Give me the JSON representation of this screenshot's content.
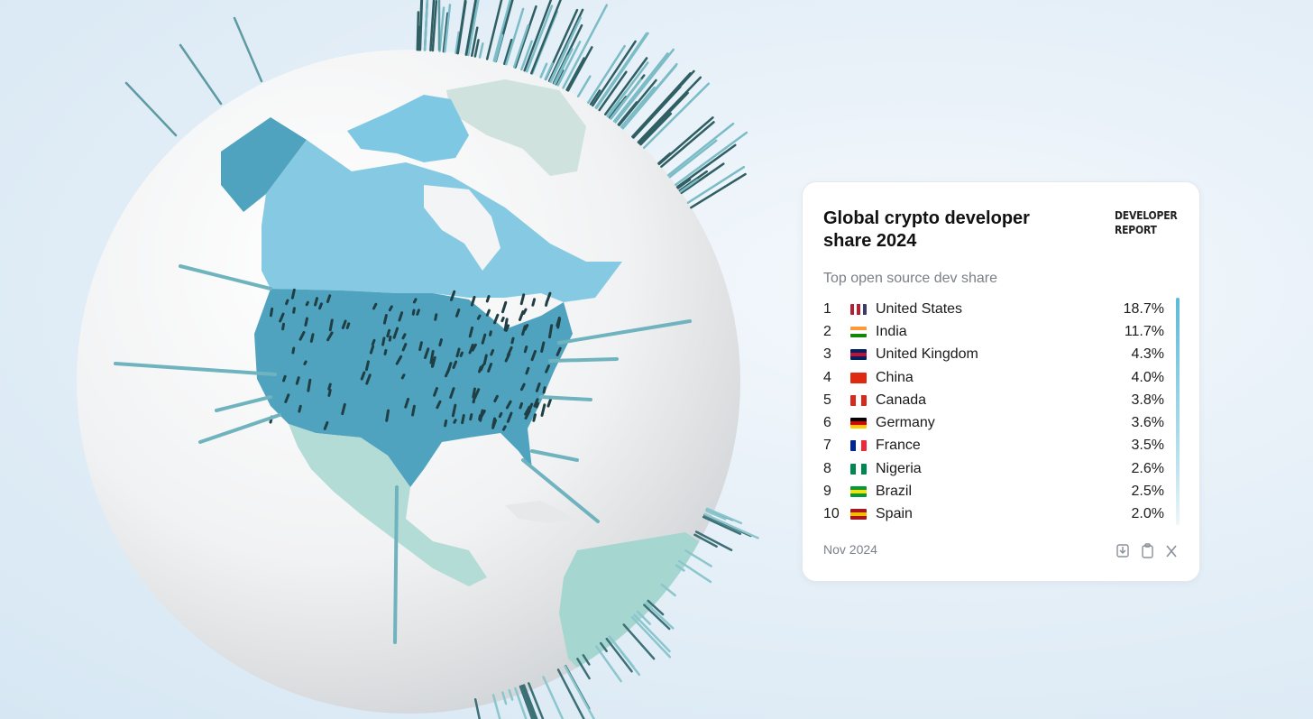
{
  "card": {
    "title": "Global crypto developer share 2024",
    "badge": "DEVELOPER REPORT",
    "subtitle": "Top open source dev share",
    "rows": [
      {
        "rank": 1,
        "country": "United States",
        "share": "18.7%"
      },
      {
        "rank": 2,
        "country": "India",
        "share": "11.7%"
      },
      {
        "rank": 3,
        "country": "United Kingdom",
        "share": "4.3%"
      },
      {
        "rank": 4,
        "country": "China",
        "share": "4.0%"
      },
      {
        "rank": 5,
        "country": "Canada",
        "share": "3.8%"
      },
      {
        "rank": 6,
        "country": "Germany",
        "share": "3.6%"
      },
      {
        "rank": 7,
        "country": "France",
        "share": "3.5%"
      },
      {
        "rank": 8,
        "country": "Nigeria",
        "share": "2.6%"
      },
      {
        "rank": 9,
        "country": "Brazil",
        "share": "2.5%"
      },
      {
        "rank": 10,
        "country": "Spain",
        "share": "2.0%"
      }
    ],
    "date": "Nov 2024"
  }
}
